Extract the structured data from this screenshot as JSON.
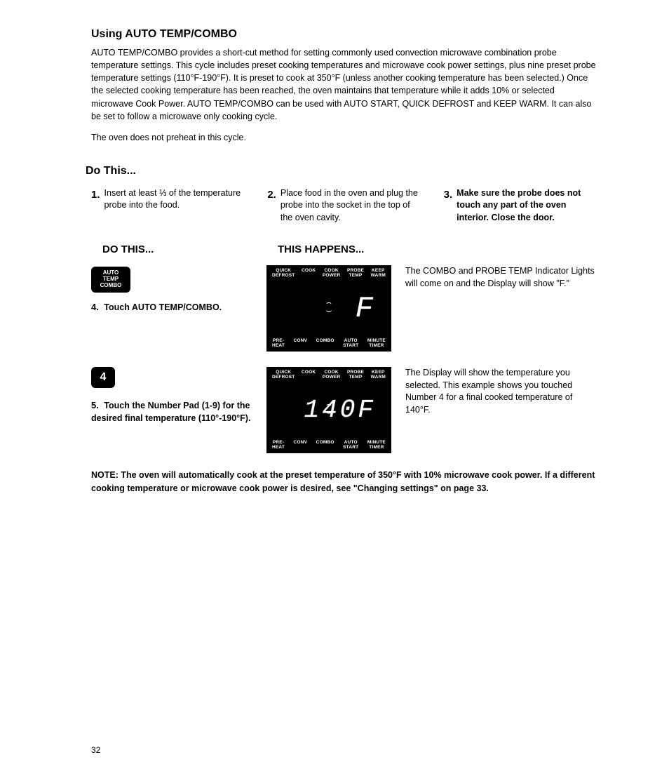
{
  "title": "Using AUTO TEMP/COMBO",
  "intro1": "AUTO TEMP/COMBO provides a short-cut method for setting commonly used convection microwave combination probe temperature settings. This cycle includes preset cooking temperatures and microwave cook power settings, plus nine preset probe temperature settings (110°F-190°F). It is preset to cook at 350°F (unless another cooking temperature has been selected.) Once the selected cooking temperature has been reached, the oven maintains that temperature while it adds 10% or selected microwave Cook Power. AUTO TEMP/COMBO can be used with AUTO START, QUICK DEFROST and KEEP WARM. It can also be set to follow a microwave only cooking cycle.",
  "intro2": "The oven does not preheat in this cycle.",
  "doThis": "Do This...",
  "steps": {
    "s1": {
      "num": "1.",
      "text": "Insert at least ⅓ of the temperature probe into the food."
    },
    "s2": {
      "num": "2.",
      "text": "Place food in the oven and plug the probe into the socket in the top of the oven cavity."
    },
    "s3": {
      "num": "3.",
      "text": "Make sure the probe does not touch any part of the oven interior. Close the door."
    }
  },
  "subHeaders": {
    "left": "DO THIS...",
    "right": "THIS HAPPENS..."
  },
  "row4": {
    "btnL1": "AUTO",
    "btnL2": "TEMP",
    "btnL3": "COMBO",
    "num": "4.",
    "text": "Touch AUTO TEMP/COMBO.",
    "right": "The COMBO and PROBE TEMP Indicator Lights will come on and the Display will show \"F.\"",
    "seg": "F"
  },
  "row5": {
    "btn": "4",
    "num": "5.",
    "text": "Touch the Number Pad (1-9) for the desired final temperature (110°-190°F).",
    "right": "The Display will show the temperature you selected. This example shows you touched Number 4 for a final cooked temperature of 140°F.",
    "seg": "140F"
  },
  "display": {
    "top": [
      "QUICK\nDEFROST",
      "COOK",
      "COOK\nPOWER",
      "PROBE\nTEMP",
      "KEEP\nWARM"
    ],
    "bot": [
      "PRE-\nHEAT",
      "CONV",
      "COMBO",
      "AUTO\nSTART",
      "MINUTE\nTIMER"
    ]
  },
  "note": "NOTE: The oven will automatically cook at the preset temperature of 350°F with 10% microwave cook power. If a different cooking temperature or microwave cook power is desired, see \"Changing settings\" on page 33.",
  "pageNum": "32"
}
